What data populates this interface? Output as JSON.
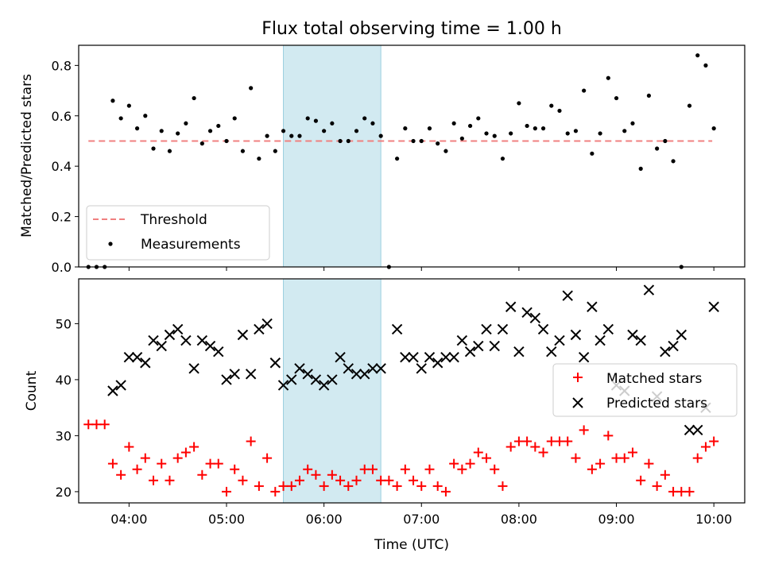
{
  "chart_data": [
    {
      "type": "scatter",
      "title": "Flux total observing time = 1.00 h",
      "xlabel": "",
      "ylabel": "Matched/Predicted stars",
      "xlim": [
        "03:29",
        "10:19"
      ],
      "ylim": [
        0,
        0.88
      ],
      "yticks": [
        0.0,
        0.2,
        0.4,
        0.6,
        0.8
      ],
      "ytick_labels": [
        "0.0",
        "0.2",
        "0.4",
        "0.6",
        "0.8"
      ],
      "highlight_span": [
        "05:35",
        "06:35"
      ],
      "legend_position": "lower-left",
      "series": [
        {
          "name": "Threshold",
          "kind": "dashed-line",
          "color": "#f08080",
          "x": [
            "03:35",
            "09:59"
          ],
          "y": [
            0.5,
            0.5
          ]
        },
        {
          "name": "Measurements",
          "kind": "dots",
          "color": "#000000",
          "x": [
            "03:35",
            "03:40",
            "03:45",
            "03:50",
            "03:55",
            "04:00",
            "04:05",
            "04:10",
            "04:15",
            "04:20",
            "04:25",
            "04:30",
            "04:35",
            "04:40",
            "04:45",
            "04:50",
            "04:55",
            "05:00",
            "05:05",
            "05:10",
            "05:15",
            "05:20",
            "05:25",
            "05:30",
            "05:35",
            "05:40",
            "05:45",
            "05:50",
            "05:55",
            "06:00",
            "06:05",
            "06:10",
            "06:15",
            "06:20",
            "06:25",
            "06:30",
            "06:35",
            "06:40",
            "06:45",
            "06:50",
            "06:55",
            "07:00",
            "07:05",
            "07:10",
            "07:15",
            "07:20",
            "07:25",
            "07:30",
            "07:35",
            "07:40",
            "07:45",
            "07:50",
            "07:55",
            "08:00",
            "08:05",
            "08:10",
            "08:15",
            "08:20",
            "08:25",
            "08:30",
            "08:35",
            "08:40",
            "08:45",
            "08:50",
            "08:55",
            "09:00",
            "09:05",
            "09:10",
            "09:15",
            "09:20",
            "09:25",
            "09:30",
            "09:35",
            "09:40",
            "09:45",
            "09:50",
            "09:55",
            "10:00"
          ],
          "y": [
            0.0,
            0.0,
            0.0,
            0.66,
            0.59,
            0.64,
            0.55,
            0.6,
            0.47,
            0.54,
            0.46,
            0.53,
            0.57,
            0.67,
            0.49,
            0.54,
            0.56,
            0.5,
            0.59,
            0.46,
            0.71,
            0.43,
            0.52,
            0.46,
            0.54,
            0.52,
            0.52,
            0.59,
            0.58,
            0.54,
            0.57,
            0.5,
            0.5,
            0.54,
            0.59,
            0.57,
            0.52,
            0.0,
            0.43,
            0.55,
            0.5,
            0.5,
            0.55,
            0.49,
            0.46,
            0.57,
            0.51,
            0.56,
            0.59,
            0.53,
            0.52,
            0.43,
            0.53,
            0.65,
            0.56,
            0.55,
            0.55,
            0.64,
            0.62,
            0.53,
            0.54,
            0.7,
            0.45,
            0.53,
            0.75,
            0.67,
            0.54,
            0.57,
            0.39,
            0.68,
            0.47,
            0.5,
            0.42,
            0.0,
            0.64,
            0.84,
            0.8,
            0.55
          ]
        }
      ]
    },
    {
      "type": "scatter",
      "title": "",
      "xlabel": "Time (UTC)",
      "ylabel": "Count",
      "xlim": [
        "03:29",
        "10:19"
      ],
      "ylim": [
        18,
        58
      ],
      "yticks": [
        20,
        30,
        40,
        50
      ],
      "ytick_labels": [
        "20",
        "30",
        "40",
        "50"
      ],
      "xticks": [
        "04:00",
        "05:00",
        "06:00",
        "07:00",
        "08:00",
        "09:00",
        "10:00"
      ],
      "xtick_labels": [
        "04:00",
        "05:00",
        "06:00",
        "07:00",
        "08:00",
        "09:00",
        "10:00"
      ],
      "highlight_span": [
        "05:35",
        "06:35"
      ],
      "legend_position": "center-right",
      "series": [
        {
          "name": "Matched stars",
          "marker": "plus",
          "color": "#ff0000",
          "x": [
            "03:35",
            "03:40",
            "03:45",
            "03:50",
            "03:55",
            "04:00",
            "04:05",
            "04:10",
            "04:15",
            "04:20",
            "04:25",
            "04:30",
            "04:35",
            "04:40",
            "04:45",
            "04:50",
            "04:55",
            "05:00",
            "05:05",
            "05:10",
            "05:15",
            "05:20",
            "05:25",
            "05:30",
            "05:35",
            "05:40",
            "05:45",
            "05:50",
            "05:55",
            "06:00",
            "06:05",
            "06:10",
            "06:15",
            "06:20",
            "06:25",
            "06:30",
            "06:35",
            "06:40",
            "06:45",
            "06:50",
            "06:55",
            "07:00",
            "07:05",
            "07:10",
            "07:15",
            "07:20",
            "07:25",
            "07:30",
            "07:35",
            "07:40",
            "07:45",
            "07:50",
            "07:55",
            "08:00",
            "08:05",
            "08:10",
            "08:15",
            "08:20",
            "08:25",
            "08:30",
            "08:35",
            "08:40",
            "08:45",
            "08:50",
            "08:55",
            "09:00",
            "09:05",
            "09:10",
            "09:15",
            "09:20",
            "09:25",
            "09:30",
            "09:35",
            "09:40",
            "09:45",
            "09:50",
            "09:55",
            "10:00"
          ],
          "y": [
            32,
            32,
            32,
            25,
            23,
            28,
            24,
            26,
            22,
            25,
            22,
            26,
            27,
            28,
            23,
            25,
            25,
            20,
            24,
            22,
            29,
            21,
            26,
            20,
            21,
            21,
            22,
            24,
            23,
            21,
            23,
            22,
            21,
            22,
            24,
            24,
            22,
            22,
            21,
            24,
            22,
            21,
            24,
            21,
            20,
            25,
            24,
            25,
            27,
            26,
            24,
            21,
            28,
            29,
            29,
            28,
            27,
            29,
            29,
            29,
            26,
            31,
            24,
            25,
            30,
            26,
            26,
            27,
            22,
            25,
            21,
            23,
            20,
            20,
            20,
            26,
            28,
            29
          ]
        },
        {
          "name": "Predicted stars",
          "marker": "x",
          "color": "#000000",
          "x": [
            "03:50",
            "03:55",
            "04:00",
            "04:05",
            "04:10",
            "04:15",
            "04:20",
            "04:25",
            "04:30",
            "04:35",
            "04:40",
            "04:45",
            "04:50",
            "04:55",
            "05:00",
            "05:05",
            "05:10",
            "05:15",
            "05:20",
            "05:25",
            "05:30",
            "05:35",
            "05:40",
            "05:45",
            "05:50",
            "05:55",
            "06:00",
            "06:05",
            "06:10",
            "06:15",
            "06:20",
            "06:25",
            "06:30",
            "06:35",
            "06:45",
            "06:50",
            "06:55",
            "07:00",
            "07:05",
            "07:10",
            "07:15",
            "07:20",
            "07:25",
            "07:30",
            "07:35",
            "07:40",
            "07:45",
            "07:50",
            "07:55",
            "08:00",
            "08:05",
            "08:10",
            "08:15",
            "08:20",
            "08:25",
            "08:30",
            "08:35",
            "08:40",
            "08:45",
            "08:50",
            "08:55",
            "09:00",
            "09:05",
            "09:10",
            "09:15",
            "09:20",
            "09:25",
            "09:30",
            "09:35",
            "09:40",
            "09:45",
            "09:50",
            "09:55",
            "10:00"
          ],
          "y": [
            38,
            39,
            44,
            44,
            43,
            47,
            46,
            48,
            49,
            47,
            42,
            47,
            46,
            45,
            40,
            41,
            48,
            41,
            49,
            50,
            43,
            39,
            40,
            42,
            41,
            40,
            39,
            40,
            44,
            42,
            41,
            41,
            42,
            42,
            49,
            44,
            44,
            42,
            44,
            43,
            44,
            44,
            47,
            45,
            46,
            49,
            46,
            49,
            53,
            45,
            52,
            51,
            49,
            45,
            47,
            55,
            48,
            44,
            53,
            47,
            49,
            39,
            38,
            48,
            47,
            56,
            37,
            45,
            46,
            48,
            31,
            31,
            35,
            53
          ]
        }
      ]
    }
  ]
}
